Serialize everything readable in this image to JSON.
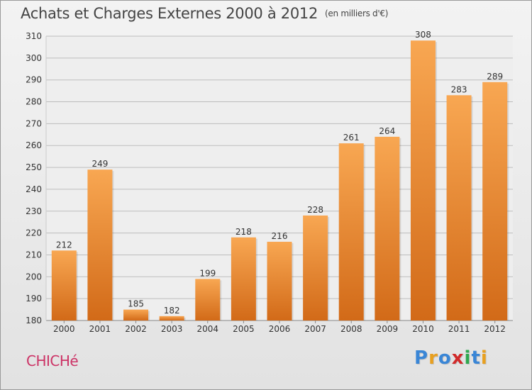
{
  "title": "Achats et Charges Externes 2000 à 2012",
  "unit": "(en milliers d'€)",
  "place": "CHICHé",
  "brand": {
    "text": "Proxiti",
    "letters": [
      {
        "ch": "P",
        "color": "#3a86d6"
      },
      {
        "ch": "r",
        "color": "#e8a020"
      },
      {
        "ch": "o",
        "color": "#3a86d6"
      },
      {
        "ch": "x",
        "color": "#d12a2a"
      },
      {
        "ch": "i",
        "color": "#2fa84f"
      },
      {
        "ch": "t",
        "color": "#3a86d6"
      },
      {
        "ch": "i",
        "color": "#e8a020"
      }
    ]
  },
  "colors": {
    "bar_top": "#f8a752",
    "bar_bottom": "#d26a18",
    "grid": "#bdbdbd",
    "axis_text": "#333333",
    "place": "#cc3366"
  },
  "chart_data": {
    "type": "bar",
    "categories": [
      "2000",
      "2001",
      "2002",
      "2003",
      "2004",
      "2005",
      "2006",
      "2007",
      "2008",
      "2009",
      "2010",
      "2011",
      "2012"
    ],
    "values": [
      212,
      249,
      185,
      182,
      199,
      218,
      216,
      228,
      261,
      264,
      308,
      283,
      289
    ],
    "ylim": [
      180,
      310
    ],
    "yticks": [
      180,
      190,
      200,
      210,
      220,
      230,
      240,
      250,
      260,
      270,
      280,
      290,
      300,
      310
    ],
    "grid": true,
    "data_labels": true
  }
}
